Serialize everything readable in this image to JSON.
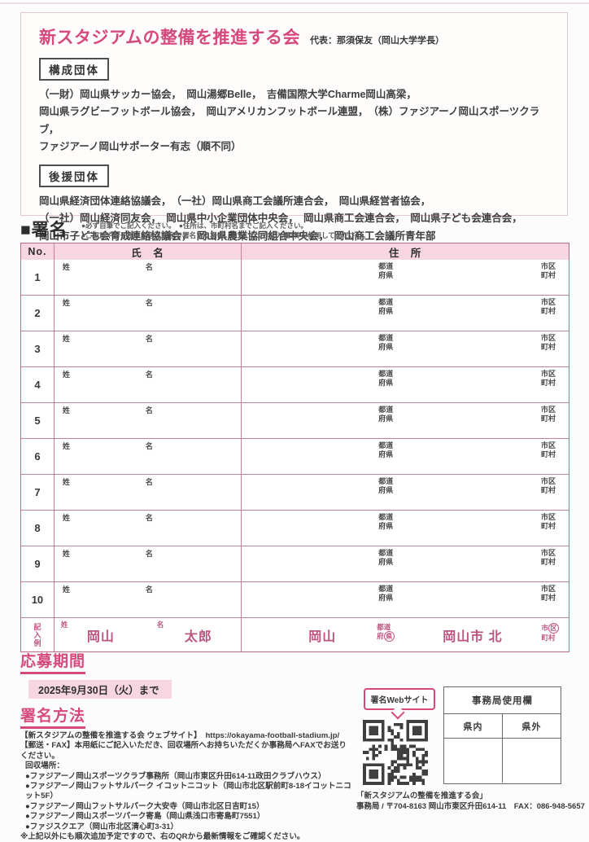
{
  "page": {
    "title": "新スタジアムの整備を推進する会",
    "representative": "代表：那須保友（岡山大学学長）"
  },
  "organizations": {
    "member_label": "構成団体",
    "member_list": "（一財）岡山県サッカー協会，　岡山湯郷Belle，　吉備国際大学Charme岡山高梁，\n岡山県ラグビーフットボール協会，　岡山アメリカンフットボール連盟，　（株）ファジアーノ岡山スポーツクラブ，\nファジアーノ岡山サポーター有志（順不同）",
    "supporter_label": "後援団体",
    "supporter_list": "岡山県経済団体連絡協議会，　（一社）岡山県商工会議所連合会，　岡山県経営者協会，\n（一社）岡山経済同友会，　岡山県中小企業団体中央会，　岡山県商工会連合会，　岡山県子ども会連合会，\n岡山市子ども会育成連絡協議会，　岡山県農業協同組合中央会，　岡山商工会議所青年部"
  },
  "signature_section": {
    "heading": "■署名",
    "note1": "●必ず自筆でご記入ください。　●住所は、市町村名までご記入ください。",
    "note2": "●ご家族やお子様、同居人数名で署名する場合、お1人につき記入欄1枠を使用してください。",
    "table": {
      "col_no": "No.",
      "col_name": "氏　名",
      "col_address": "住　所",
      "row_numbers": [
        "1",
        "2",
        "3",
        "4",
        "5",
        "6",
        "7",
        "8",
        "9",
        "10"
      ],
      "label_sei": "姓",
      "label_mei": "名",
      "label_todofuken": "都道\n府県",
      "label_shikuchoson": "市区\n町村",
      "example": {
        "row_label": "記入例",
        "sei_value": "岡山",
        "mei_value": "太郎",
        "address_value": "岡山",
        "todou": "都道",
        "fu": "府",
        "ken_circled": "県",
        "city_value": "岡山市 北",
        "shi": "市",
        "ku_circled": "区",
        "choson": "町村"
      }
    }
  },
  "period_section": {
    "heading": "応募期間",
    "deadline": "2025年9月30日（火）まで"
  },
  "method_section": {
    "heading": "署名方法",
    "website_line": "【新スタジアムの整備を推進する会 ウェブサイト】　https://okayama-football-stadium.jp/",
    "fax_line": "【郵送・FAX】本用紙にご記入いただき、回収場所へお持ちいただくか事務局へFAXでお送りください。",
    "collection_label": "回収場所：",
    "locations": [
      "●ファジアーノ岡山スポーツクラブ事務所（岡山市東区升田614-11政田クラブハウス）",
      "●ファジアーノ岡山フットサルパーク イコットニコット（岡山市北区駅前町8-18イコットニコット5F）",
      "●ファジアーノ岡山フットサルパーク大安寺（岡山市北区日吉町15）",
      "●ファジアーノ岡山スポーツパーク寄島（岡山県浅口市寄島町7551）",
      "●ファジスクエア（岡山市北区清心町3-31）"
    ],
    "note": "※上記以外にも順次追加予定ですので、右のQRから最新情報をご確認ください。"
  },
  "web_signature": {
    "bubble_label": "署名Webサイト",
    "qr_icon": "qr-code"
  },
  "office_use": {
    "title": "事務局使用欄",
    "col_inside": "県内",
    "col_outside": "県外"
  },
  "footer": {
    "org_name": "「新スタジアムの整備を推進する会」",
    "contact": "事務局 / 〒704-8163 岡山市東区升田614-11　FAX：086-948-5657"
  },
  "colors": {
    "accent_pink": "#d5497d",
    "table_border": "#c5839a",
    "header_bg": "#f8d6e1",
    "example_text": "#bd5480"
  }
}
